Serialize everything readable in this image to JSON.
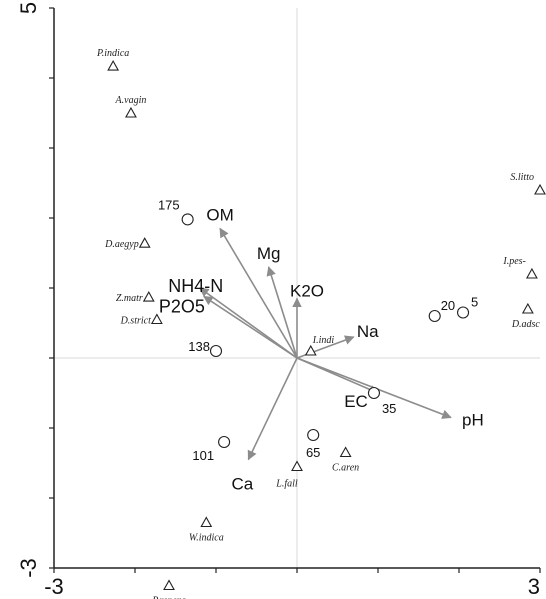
{
  "chart_data": {
    "type": "scatter",
    "title": "",
    "xlabel": "",
    "ylabel": "",
    "xlim": [
      -3,
      3
    ],
    "ylim": [
      -3,
      5
    ],
    "x_ticks": [
      "-3",
      "3"
    ],
    "y_ticks": [
      "5",
      "-3"
    ],
    "grid": false,
    "colors": {
      "axes": "#222222",
      "zero_lines": "#d9d9d9",
      "arrows": "#8c8c8c",
      "markers": "#222222"
    },
    "species": [
      {
        "label": "P.indica",
        "x": -2.27,
        "y": 4.17
      },
      {
        "label": "A.vagin",
        "x": -2.05,
        "y": 3.5
      },
      {
        "label": "D.aegyp",
        "x": -1.88,
        "y": 1.64
      },
      {
        "label": "Z.matr",
        "x": -1.83,
        "y": 0.87
      },
      {
        "label": "D.strict",
        "x": -1.73,
        "y": 0.55
      },
      {
        "label": "I.indi",
        "x": 0.17,
        "y": 0.1
      },
      {
        "label": "S.litto",
        "x": 3.0,
        "y": 2.4
      },
      {
        "label": "I.pes-",
        "x": 2.9,
        "y": 1.2
      },
      {
        "label": "D.adsc",
        "x": 2.85,
        "y": 0.7
      },
      {
        "label": "L.fall",
        "x": 0.0,
        "y": -1.55
      },
      {
        "label": "C.aren",
        "x": 0.6,
        "y": -1.35
      },
      {
        "label": "W.indica",
        "x": -1.12,
        "y": -2.35
      },
      {
        "label": "P.repens",
        "x": -1.58,
        "y": -3.25
      }
    ],
    "sites": [
      {
        "label": "175",
        "x": -1.35,
        "y": 1.98
      },
      {
        "label": "138",
        "x": -1.0,
        "y": 0.1
      },
      {
        "label": "101",
        "x": -0.9,
        "y": -1.2
      },
      {
        "label": "65",
        "x": 0.2,
        "y": -1.1
      },
      {
        "label": "35",
        "x": 0.95,
        "y": -0.5
      },
      {
        "label": "20",
        "x": 1.7,
        "y": 0.6
      },
      {
        "label": "5",
        "x": 2.05,
        "y": 0.65
      }
    ],
    "environmental_vectors": [
      {
        "label": "OM",
        "x": -0.95,
        "y": 1.85
      },
      {
        "label": "Mg",
        "x": -0.35,
        "y": 1.3
      },
      {
        "label": "NH4-N",
        "x": -1.2,
        "y": 1.0
      },
      {
        "label": "P2O5",
        "x": -1.15,
        "y": 0.88
      },
      {
        "label": "K2O",
        "x": 0.0,
        "y": 0.85
      },
      {
        "label": "Na",
        "x": 0.7,
        "y": 0.3
      },
      {
        "label": "EC",
        "x": 1.0,
        "y": -0.5
      },
      {
        "label": "pH",
        "x": 1.9,
        "y": -0.85
      },
      {
        "label": "Ca",
        "x": -0.6,
        "y": -1.45
      }
    ]
  }
}
